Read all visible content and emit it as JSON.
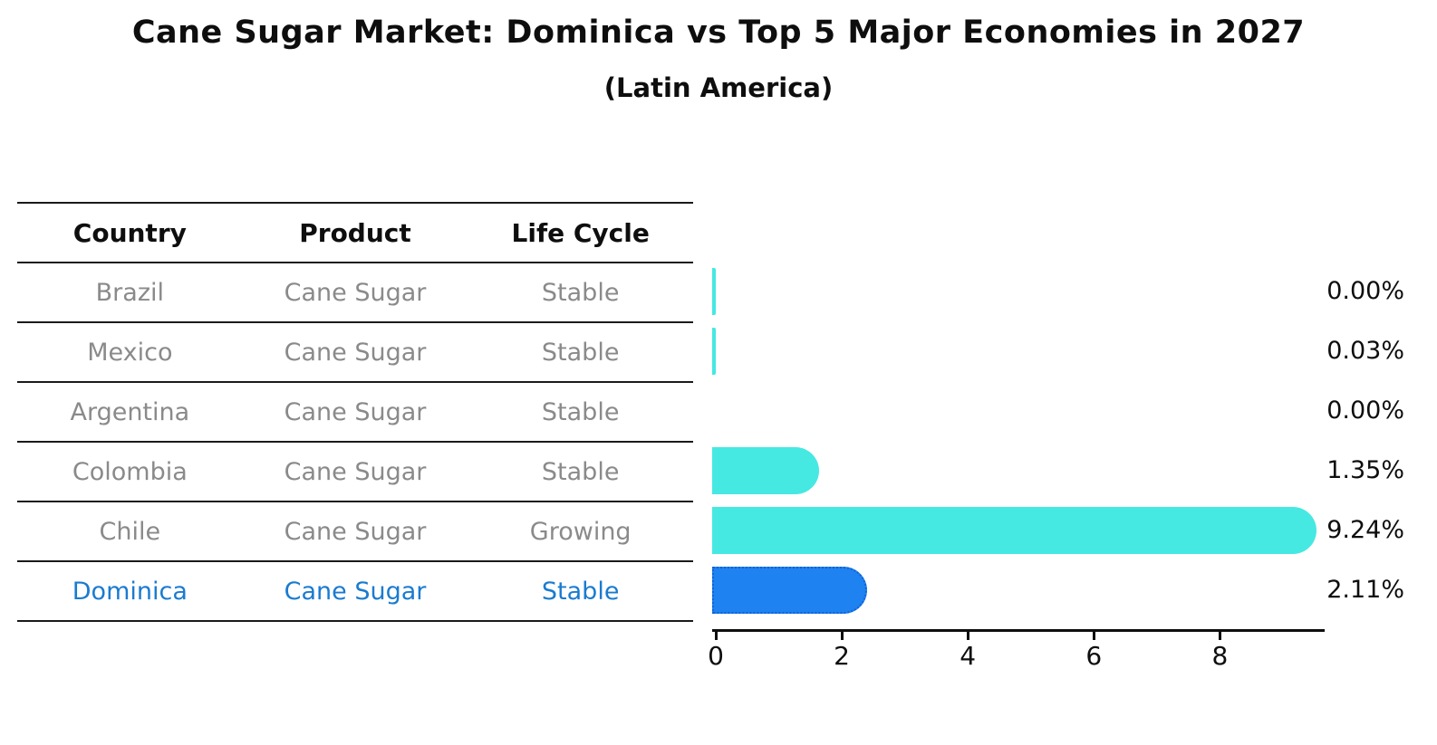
{
  "title": "Cane Sugar Market: Dominica vs Top 5 Major Economies in 2027",
  "subtitle": "(Latin America)",
  "table": {
    "headers": [
      "Country",
      "Product",
      "Life Cycle"
    ],
    "rows": [
      {
        "country": "Brazil",
        "product": "Cane Sugar",
        "life_cycle": "Stable",
        "highlight": false
      },
      {
        "country": "Mexico",
        "product": "Cane Sugar",
        "life_cycle": "Stable",
        "highlight": false
      },
      {
        "country": "Argentina",
        "product": "Cane Sugar",
        "life_cycle": "Stable",
        "highlight": false
      },
      {
        "country": "Colombia",
        "product": "Cane Sugar",
        "life_cycle": "Stable",
        "highlight": false
      },
      {
        "country": "Chile",
        "product": "Cane Sugar",
        "life_cycle": "Growing",
        "highlight": false
      },
      {
        "country": "Dominica",
        "product": "Cane Sugar",
        "life_cycle": "Stable",
        "highlight": true
      }
    ]
  },
  "chart_data": {
    "type": "bar",
    "orientation": "horizontal",
    "title": "Cane Sugar Market: Dominica vs Top 5 Major Economies in 2027",
    "subtitle": "(Latin America)",
    "categories": [
      "Brazil",
      "Mexico",
      "Argentina",
      "Colombia",
      "Chile",
      "Dominica"
    ],
    "values": [
      0.002,
      0.03,
      0.0,
      1.35,
      9.24,
      2.11
    ],
    "value_labels": [
      "0.00%",
      "0.03%",
      "0.00%",
      "1.35%",
      "9.24%",
      "2.11%"
    ],
    "xlabel": "",
    "ylabel": "",
    "xlim": [
      0,
      9.72
    ],
    "x_ticks": [
      0,
      2,
      4,
      6,
      8
    ],
    "grid": false,
    "legend": false,
    "highlight_index": 5
  },
  "colors": {
    "bar": "#46e8e2",
    "highlight_bar": "#1e82f0",
    "highlight_border": "#0f62d6",
    "highlight_text": "#1a7bd0",
    "row_text": "#8a8a8a",
    "text": "#0e0e0e"
  }
}
